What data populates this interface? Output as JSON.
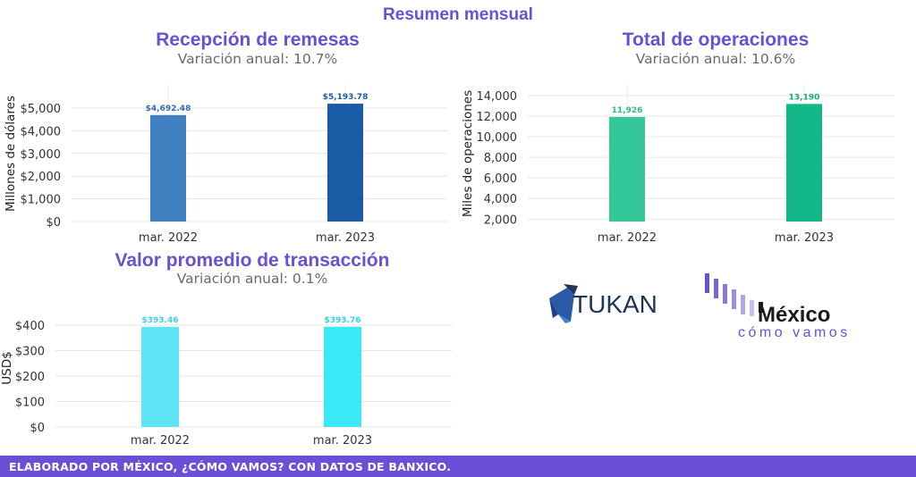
{
  "header": {
    "title": "Resumen mensual"
  },
  "charts": {
    "remesas": {
      "title": "Recepción de remesas",
      "subtitle": "Variación anual: 10.7%"
    },
    "operaciones": {
      "title": "Total de operaciones",
      "subtitle": "Variación anual: 10.6%"
    },
    "promedio": {
      "title": "Valor promedio de transacción",
      "subtitle": "Variación anual: 0.1%"
    }
  },
  "chart_data": [
    {
      "type": "bar",
      "title": "Recepción de remesas",
      "subtitle": "Variación anual: 10.7%",
      "ylabel": "Millones de dólares",
      "categories": [
        "mar. 2022",
        "mar. 2023"
      ],
      "values": [
        4692.48,
        5193.78
      ],
      "value_labels": [
        "$4,692.48",
        "$5,193.78"
      ],
      "yticks": [
        0,
        1000,
        2000,
        3000,
        4000,
        5000
      ],
      "ytick_labels": [
        "$0",
        "$1,000",
        "$2,000",
        "$3,000",
        "$4,000",
        "$5,000"
      ],
      "ylim": [
        0,
        5300
      ],
      "colors": [
        "#4080c0",
        "#1a5ba6"
      ],
      "grid": true
    },
    {
      "type": "bar",
      "title": "Total de operaciones",
      "subtitle": "Variación anual: 10.6%",
      "ylabel": "Miles de operaciones",
      "categories": [
        "mar. 2022",
        "mar. 2023"
      ],
      "values": [
        11926,
        13190
      ],
      "value_labels": [
        "11,926",
        "13,190"
      ],
      "yticks": [
        2000,
        4000,
        6000,
        8000,
        10000,
        12000,
        14000
      ],
      "ytick_labels": [
        "2,000",
        "4,000",
        "6,000",
        "8,000",
        "10,000",
        "12,000",
        "14,000"
      ],
      "ylim": [
        0,
        14000
      ],
      "colors": [
        "#34c79a",
        "#12b888"
      ],
      "grid": true
    },
    {
      "type": "bar",
      "title": "Valor promedio de transacción",
      "subtitle": "Variación anual: 0.1%",
      "ylabel": "USD$",
      "categories": [
        "mar. 2022",
        "mar. 2023"
      ],
      "values": [
        393.46,
        393.76
      ],
      "value_labels": [
        "$393.46",
        "$393.76"
      ],
      "yticks": [
        0,
        100,
        200,
        300,
        400
      ],
      "ytick_labels": [
        "$0",
        "$100",
        "$200",
        "$300",
        "$400"
      ],
      "ylim": [
        0,
        410
      ],
      "colors": [
        "#5ee4f4",
        "#3be8f6"
      ],
      "grid": true
    }
  ],
  "logos": {
    "tukan": {
      "text": "TUKAN",
      "color": "#1d3557"
    },
    "mcv": {
      "text_main": "México",
      "text_sub": "cómo vamos",
      "color_main": "#1a1a1a",
      "color_sub": "#6a4fd8"
    }
  },
  "footer": {
    "text": "ELABORADO POR MÉXICO, ¿CÓMO VAMOS? CON DATOS DE BANXICO."
  }
}
